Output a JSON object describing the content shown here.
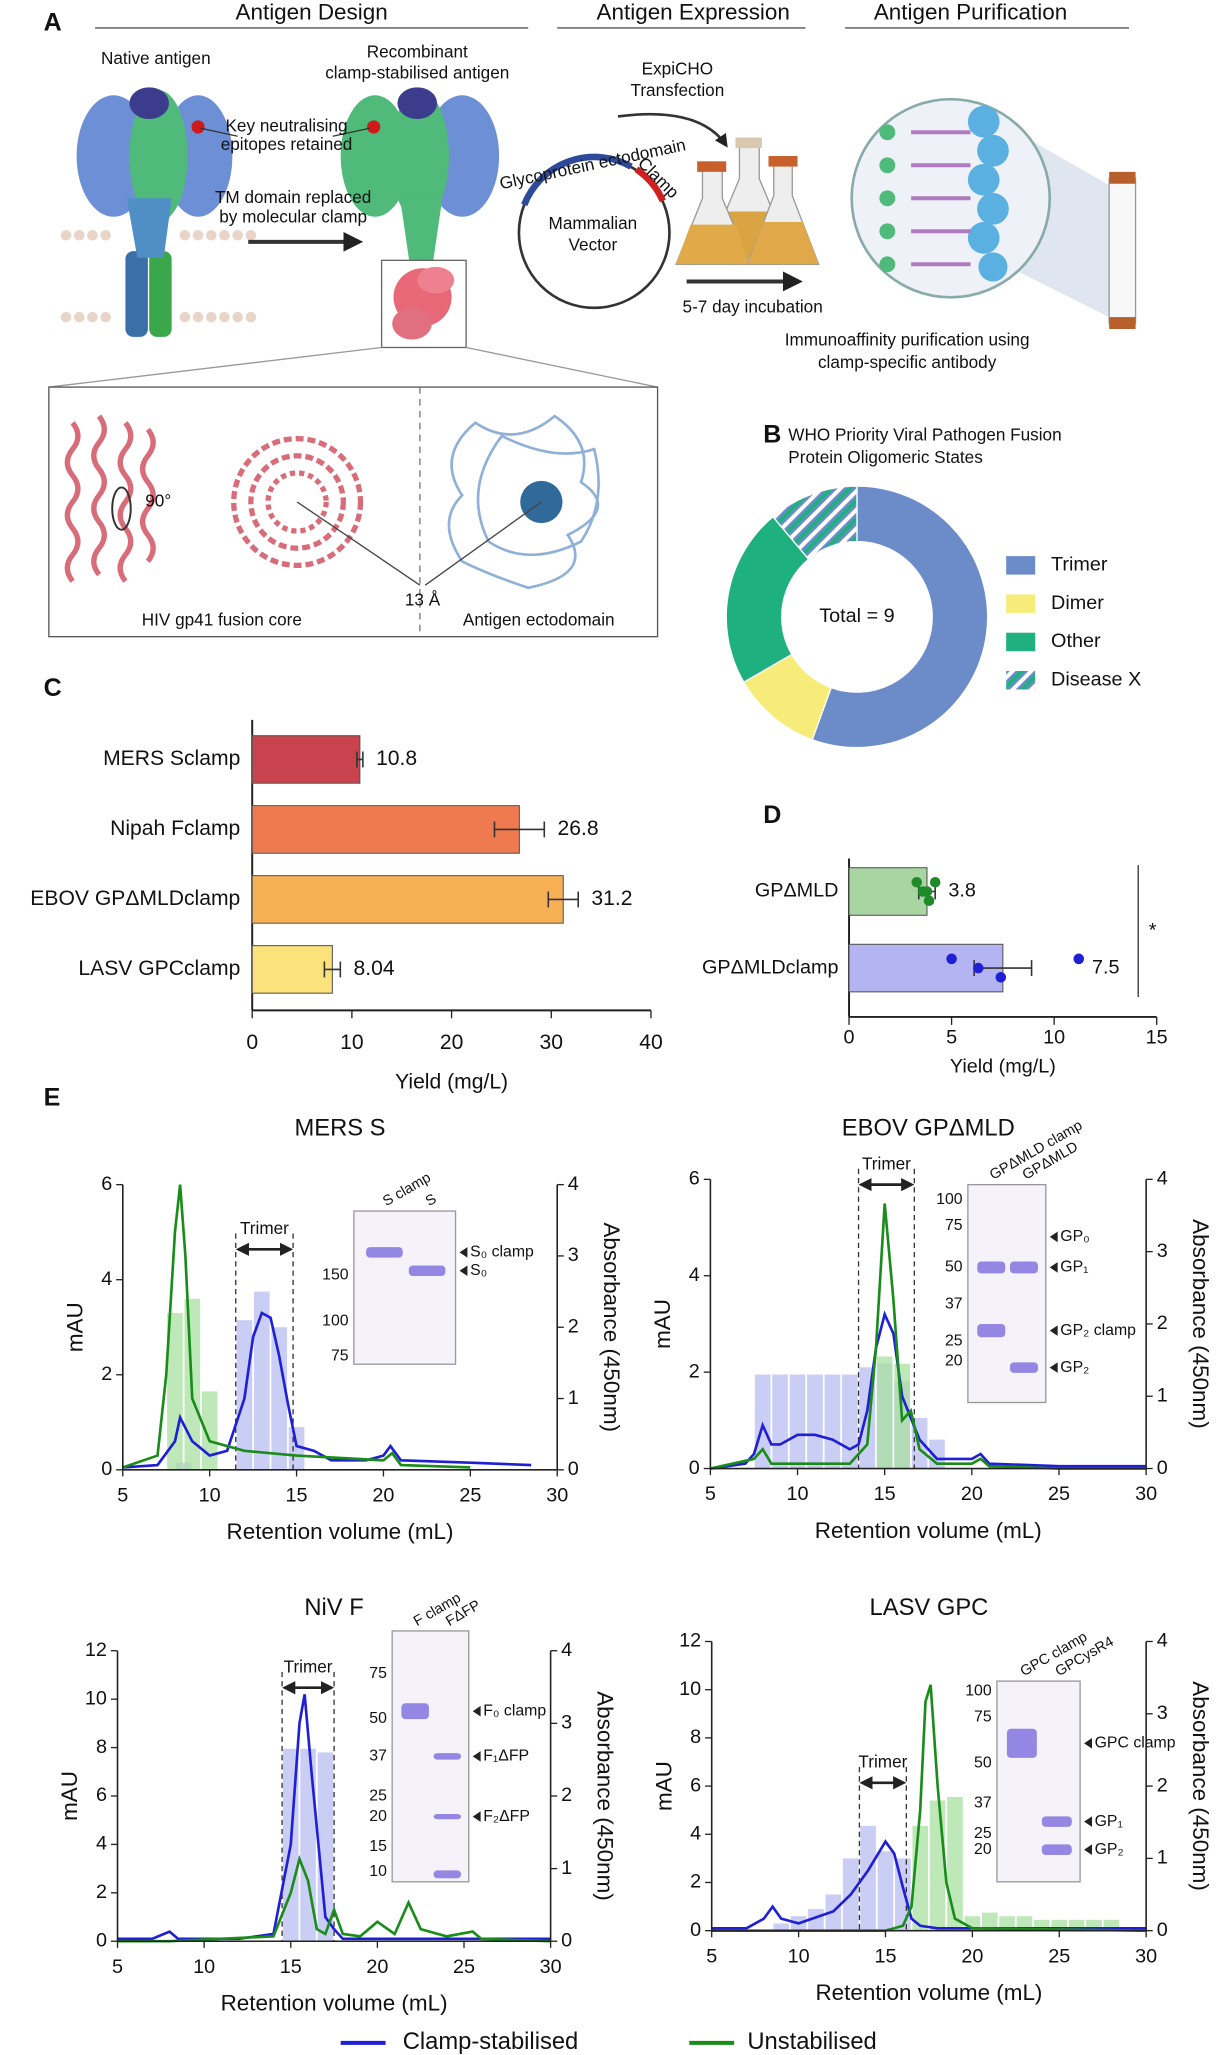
{
  "panel_labels": {
    "a": "A",
    "b": "B",
    "c": "C",
    "d": "D",
    "e": "E"
  },
  "panel_a": {
    "headers": [
      "Antigen Design",
      "Antigen Expression",
      "Antigen Purification"
    ],
    "native_antigen": "Native antigen",
    "recombinant": [
      "Recombinant",
      "clamp-stabilised antigen"
    ],
    "epitopes": [
      "Key neutralising",
      "epitopes retained"
    ],
    "tm_domain": [
      "TM domain replaced",
      "by molecular clamp"
    ],
    "transfection": [
      "ExpiCHO",
      "Transfection"
    ],
    "vector": [
      "Mammalian",
      "Vector"
    ],
    "ectodomain_arc": "Glycoprotein ectodomain",
    "clamp_arc": "Clamp",
    "incubation": "5-7 day incubation",
    "purification": [
      "Immunoaffinity purification using",
      "clamp-specific antibody"
    ],
    "rotation": "90°",
    "distance": "13 Å",
    "inset_left": "HIV gp41 fusion core",
    "inset_right": "Antigen ectodomain"
  },
  "chart_data": [
    {
      "type": "donut",
      "title": [
        "WHO Priority Viral Pathogen Fusion",
        "Protein Oligomeric States"
      ],
      "center_label": "Total = 9",
      "categories": [
        "Trimer",
        "Dimer",
        "Other",
        "Disease X"
      ],
      "values": [
        5,
        1,
        2,
        1
      ],
      "colors": [
        "#6b8cc9",
        "#f7ec7a",
        "#1fb080",
        "#6b8cc9"
      ],
      "hatched_category": 3,
      "hatch_color": "#1fb080"
    },
    {
      "type": "hbar",
      "categories": [
        "MERS Sclamp",
        "Nipah Fclamp",
        "EBOV GPΔMLDclamp",
        "LASV GPCclamp"
      ],
      "values": [
        10.8,
        26.8,
        31.2,
        8.04
      ],
      "errors": [
        0.3,
        2.5,
        1.5,
        0.8
      ],
      "colors": [
        "#c9434f",
        "#f07a4f",
        "#f8b054",
        "#fbe27a"
      ],
      "xlim": [
        0,
        40
      ],
      "xticks": [
        0,
        10,
        20,
        30,
        40
      ],
      "xlabel": "Yield (mg/L)"
    },
    {
      "type": "hbar",
      "categories": [
        "GPΔMLD",
        "GPΔMLDclamp"
      ],
      "values": [
        3.8,
        7.5
      ],
      "errors": [
        0.4,
        1.4
      ],
      "points": [
        [
          3.3,
          3.6,
          3.9,
          4.2,
          3.8
        ],
        [
          5.0,
          6.3,
          7.4,
          11.2
        ]
      ],
      "point_colors": [
        "#1f8a2a",
        "#1f1fd6"
      ],
      "colors": [
        "#a8d5a2",
        "#b4b4f2"
      ],
      "xlim": [
        0,
        15
      ],
      "xticks": [
        0,
        5,
        10,
        15
      ],
      "xlabel": "Yield (mg/L)",
      "significance": "*"
    },
    {
      "type": "chromatogram",
      "title": "MERS S",
      "xlabel": "Retention volume (mL)",
      "ylabel": "mAU",
      "y2label": "Absorbance (450nm)",
      "xlim": [
        5,
        30
      ],
      "xticks": [
        5,
        10,
        15,
        20,
        25,
        30
      ],
      "ylim": [
        0,
        6
      ],
      "yticks": [
        0,
        2,
        4,
        6
      ],
      "y2lim": [
        0,
        4
      ],
      "y2ticks": [
        0,
        1,
        2,
        3,
        4
      ],
      "trimer_label": "Trimer",
      "trimer_range": [
        11.5,
        14.8
      ],
      "lines": [
        {
          "x": [
            5,
            7,
            8,
            8.3,
            9,
            10,
            11,
            12,
            12.5,
            13,
            13.5,
            14,
            14.5,
            15,
            16,
            17,
            19,
            20,
            20.4,
            21,
            25,
            28.5
          ],
          "values": [
            0.05,
            0.1,
            0.6,
            1.1,
            0.6,
            0.3,
            0.4,
            1.5,
            2.8,
            3.3,
            3.2,
            2.4,
            1.4,
            0.5,
            0.4,
            0.2,
            0.2,
            0.3,
            0.5,
            0.2,
            0.15,
            0.1
          ]
        },
        {
          "x": [
            5,
            7,
            7.5,
            8,
            8.3,
            8.6,
            9,
            10,
            12,
            15,
            20,
            20.5,
            21,
            25
          ],
          "values": [
            0.05,
            0.3,
            2,
            5,
            6,
            4.5,
            1.5,
            0.6,
            0.4,
            0.3,
            0.2,
            0.35,
            0.1,
            0.05
          ]
        }
      ],
      "bars": [
        {
          "x": [
            8.5,
            12,
            13,
            14,
            15
          ],
          "values": [
            0.1,
            2.1,
            2.5,
            2.0,
            0.6
          ],
          "axis": "y2"
        },
        {
          "x": [
            8,
            9,
            10
          ],
          "values": [
            2.2,
            2.4,
            1.1
          ],
          "axis": "y2"
        }
      ],
      "gel": {
        "lanes": [
          "S clamp",
          "S"
        ],
        "ladder": [
          "150",
          "100",
          "75"
        ],
        "bands": [
          "S₀ clamp",
          "S₀"
        ]
      }
    },
    {
      "type": "chromatogram",
      "title": "EBOV GPΔMLD",
      "xlabel": "Retention volume (mL)",
      "ylabel": "mAU",
      "y2label": "Absorbance (450nm)",
      "xlim": [
        5,
        30
      ],
      "xticks": [
        5,
        10,
        15,
        20,
        25,
        30
      ],
      "ylim": [
        0,
        6
      ],
      "yticks": [
        0,
        2,
        4,
        6
      ],
      "y2lim": [
        0,
        4
      ],
      "y2ticks": [
        0,
        1,
        2,
        3,
        4
      ],
      "trimer_label": "Trimer",
      "trimer_range": [
        13.5,
        16.7
      ],
      "lines": [
        {
          "x": [
            5,
            7,
            7.5,
            8,
            8.5,
            9,
            10,
            11,
            12,
            13,
            13.5,
            14,
            14.5,
            15,
            15.5,
            16,
            17,
            18,
            20,
            20.5,
            21,
            25,
            30
          ],
          "values": [
            0,
            0.1,
            0.3,
            0.9,
            0.5,
            0.5,
            0.7,
            0.7,
            0.6,
            0.4,
            0.5,
            1.2,
            2.5,
            3.2,
            2.8,
            1.5,
            0.6,
            0.2,
            0.2,
            0.3,
            0.1,
            0.05,
            0.05
          ]
        },
        {
          "x": [
            5,
            7.5,
            8,
            8.5,
            9,
            12,
            13,
            14,
            14.5,
            15,
            15.5,
            16,
            16.5,
            17,
            18,
            20,
            20.5,
            21,
            25,
            30
          ],
          "values": [
            0,
            0.2,
            0.4,
            0.1,
            0.1,
            0.1,
            0.1,
            0.5,
            2.5,
            5.5,
            3.5,
            1.0,
            1.2,
            0.4,
            0.1,
            0.1,
            0.2,
            0.05,
            0,
            0
          ]
        }
      ],
      "bars": [
        {
          "x": [
            8,
            9,
            10,
            11,
            12,
            13,
            14,
            15,
            16,
            17,
            18
          ],
          "values": [
            1.3,
            1.3,
            1.3,
            1.3,
            1.3,
            1.3,
            1.4,
            1.45,
            1.2,
            0.7,
            0.4
          ],
          "axis": "y2"
        },
        {
          "x": [
            15,
            16
          ],
          "values": [
            1.55,
            1.45
          ],
          "axis": "y2"
        }
      ],
      "gel": {
        "lanes": [
          "GPΔMLD clamp",
          "GPΔMLD"
        ],
        "ladder": [
          "100",
          "75",
          "50",
          "37",
          "25",
          "20"
        ],
        "bands": [
          "GP₀",
          "GP₁",
          "GP₂ clamp",
          "GP₂"
        ]
      }
    },
    {
      "type": "chromatogram",
      "title": "NiV F",
      "xlabel": "Retention volume (mL)",
      "ylabel": "mAU",
      "y2label": "Absorbance (450nm)",
      "xlim": [
        5,
        30
      ],
      "xticks": [
        5,
        10,
        15,
        20,
        25,
        30
      ],
      "ylim": [
        0,
        12
      ],
      "yticks": [
        0,
        2,
        4,
        6,
        8,
        10,
        12
      ],
      "y2lim": [
        0,
        4
      ],
      "y2ticks": [
        0,
        1,
        2,
        3,
        4
      ],
      "trimer_label": "Trimer",
      "trimer_range": [
        14.5,
        17.5
      ],
      "lines": [
        {
          "x": [
            5,
            7,
            8,
            8.5,
            9,
            12,
            14,
            15,
            15.5,
            15.8,
            16.2,
            17,
            17.5,
            18,
            21,
            25,
            30
          ],
          "values": [
            0.1,
            0.1,
            0.4,
            0.1,
            0.1,
            0.1,
            0.3,
            4,
            9,
            10.2,
            7,
            1.0,
            0.5,
            0.1,
            0.1,
            0.1,
            0.1
          ]
        },
        {
          "x": [
            5,
            8,
            14,
            15,
            15.5,
            16,
            16.5,
            17,
            17.5,
            18,
            19,
            20,
            21,
            21.8,
            22.5,
            24,
            25.5,
            26,
            30
          ],
          "values": [
            0,
            0,
            0.2,
            2,
            3.4,
            2.5,
            0.5,
            0.3,
            1.3,
            0.3,
            0.2,
            0.8,
            0.3,
            1.6,
            0.5,
            0.2,
            0.4,
            0.1,
            0
          ]
        }
      ],
      "bars": [
        {
          "x": [
            15,
            16,
            17
          ],
          "values": [
            2.65,
            2.65,
            2.6
          ],
          "axis": "y2"
        },
        {
          "x": [],
          "values": [],
          "axis": "y2"
        }
      ],
      "gel": {
        "lanes": [
          "F clamp",
          "FΔFP"
        ],
        "ladder": [
          "75",
          "50",
          "37",
          "25",
          "20",
          "15",
          "10"
        ],
        "bands": [
          "F₀ clamp",
          "F₁ΔFP",
          "F₂ΔFP"
        ]
      }
    },
    {
      "type": "chromatogram",
      "title": "LASV GPC",
      "xlabel": "Retention volume (mL)",
      "ylabel": "mAU",
      "y2label": "Absorbance (450nm)",
      "xlim": [
        5,
        30
      ],
      "xticks": [
        5,
        10,
        15,
        20,
        25,
        30
      ],
      "ylim": [
        0,
        12
      ],
      "yticks": [
        0,
        2,
        4,
        6,
        8,
        10,
        12
      ],
      "y2lim": [
        0,
        4
      ],
      "y2ticks": [
        0,
        1,
        2,
        3,
        4
      ],
      "trimer_label": "Trimer",
      "trimer_range": [
        13.5,
        16.2
      ],
      "lines": [
        {
          "x": [
            5,
            7,
            8,
            8.5,
            9,
            10,
            12,
            13,
            14,
            15,
            15.5,
            16,
            16.5,
            17,
            18,
            20,
            25,
            30
          ],
          "values": [
            0.1,
            0.1,
            0.5,
            1.0,
            0.5,
            0.3,
            0.8,
            1.5,
            2.5,
            3.7,
            3.2,
            1.8,
            0.5,
            0.2,
            0.1,
            0.1,
            0.1,
            0.1
          ]
        },
        {
          "x": [
            5,
            15,
            16,
            16.5,
            17,
            17.3,
            17.6,
            18,
            18.5,
            19,
            20,
            25,
            30
          ],
          "values": [
            0,
            0,
            0.2,
            1,
            5,
            9.5,
            10.2,
            6,
            2,
            0.5,
            0.1,
            0.05,
            0
          ]
        }
      ],
      "bars": [
        {
          "x": [
            9,
            10,
            11,
            12,
            13,
            14,
            15,
            16
          ],
          "values": [
            0.1,
            0.2,
            0.3,
            0.5,
            1.0,
            1.45,
            1.1,
            1.0
          ],
          "axis": "y2"
        },
        {
          "x": [
            17,
            18,
            19,
            20,
            21,
            22,
            23,
            24,
            25,
            26,
            27,
            28
          ],
          "values": [
            1.45,
            1.8,
            1.85,
            0.2,
            0.25,
            0.2,
            0.2,
            0.15,
            0.15,
            0.15,
            0.15,
            0.15
          ],
          "axis": "y2"
        }
      ],
      "gel": {
        "lanes": [
          "GPC clamp",
          "GPCysR4"
        ],
        "ladder": [
          "100",
          "75",
          "50",
          "37",
          "25",
          "20"
        ],
        "bands": [
          "GPC clamp",
          "GP₁",
          "GP₂"
        ]
      }
    }
  ],
  "legend": {
    "items": [
      {
        "name": "Clamp-stabilised",
        "color": "#1f1fd6",
        "bar_color": "#b9bdf0"
      },
      {
        "name": "Unstabilised",
        "color": "#1a8c1a",
        "bar_color": "#a8e0a0"
      }
    ]
  }
}
